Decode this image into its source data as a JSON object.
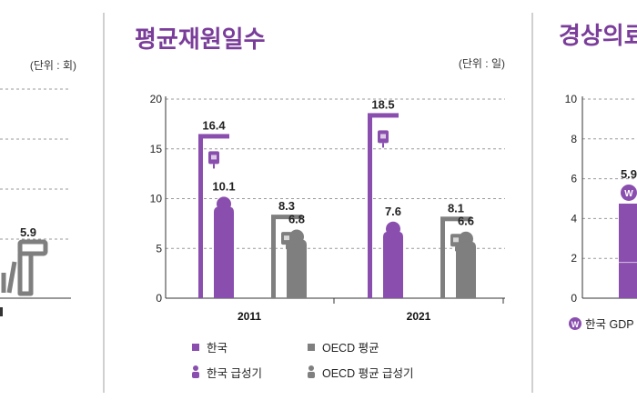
{
  "colors": {
    "korea": "#8a4fae",
    "oecd": "#7f7f7f",
    "title": "#7a3d9a",
    "divider": "#d0d0d0"
  },
  "left_panel": {
    "unit": "(단위 : 회)",
    "value_label": "5.9"
  },
  "center_panel": {
    "title": "평균재원일수",
    "unit": "(단위 : 일)"
  },
  "right_panel": {
    "title": "경상의료",
    "value_label": "5.9",
    "legend_label": "한국 GDP"
  },
  "legend": [
    {
      "label": "한국",
      "icon": "korea-square-icon"
    },
    {
      "label": "OECD 평균",
      "icon": "oecd-square-icon"
    },
    {
      "label": "한국 급성기",
      "icon": "korea-person-icon"
    },
    {
      "label": "OECD 평균 급성기",
      "icon": "oecd-person-icon"
    }
  ],
  "chart_data": [
    {
      "type": "bar",
      "title": "",
      "unit": "(단위 : 회)",
      "values_visible": [
        5.9
      ]
    },
    {
      "type": "bar",
      "title": "평균재원일수",
      "unit": "(단위 : 일)",
      "categories": [
        "2011",
        "2021"
      ],
      "series": [
        {
          "name": "한국",
          "values": [
            16.4,
            18.5
          ]
        },
        {
          "name": "한국 급성기",
          "values": [
            10.1,
            7.6
          ]
        },
        {
          "name": "OECD 평균",
          "values": [
            8.3,
            8.1
          ]
        },
        {
          "name": "OECD 평균 급성기",
          "values": [
            6.8,
            6.6
          ]
        }
      ],
      "ylim": [
        0,
        20
      ],
      "yticks": [
        "0",
        "5",
        "10",
        "15",
        "20"
      ],
      "grid": true,
      "legend_position": "bottom"
    },
    {
      "type": "bar",
      "title": "경상의료",
      "ylim": [
        0,
        10
      ],
      "yticks": [
        "0",
        "2",
        "4",
        "6",
        "8",
        "10"
      ],
      "grid": true,
      "series": [
        {
          "name": "한국 GDP",
          "values": [
            5.9
          ]
        }
      ]
    }
  ]
}
